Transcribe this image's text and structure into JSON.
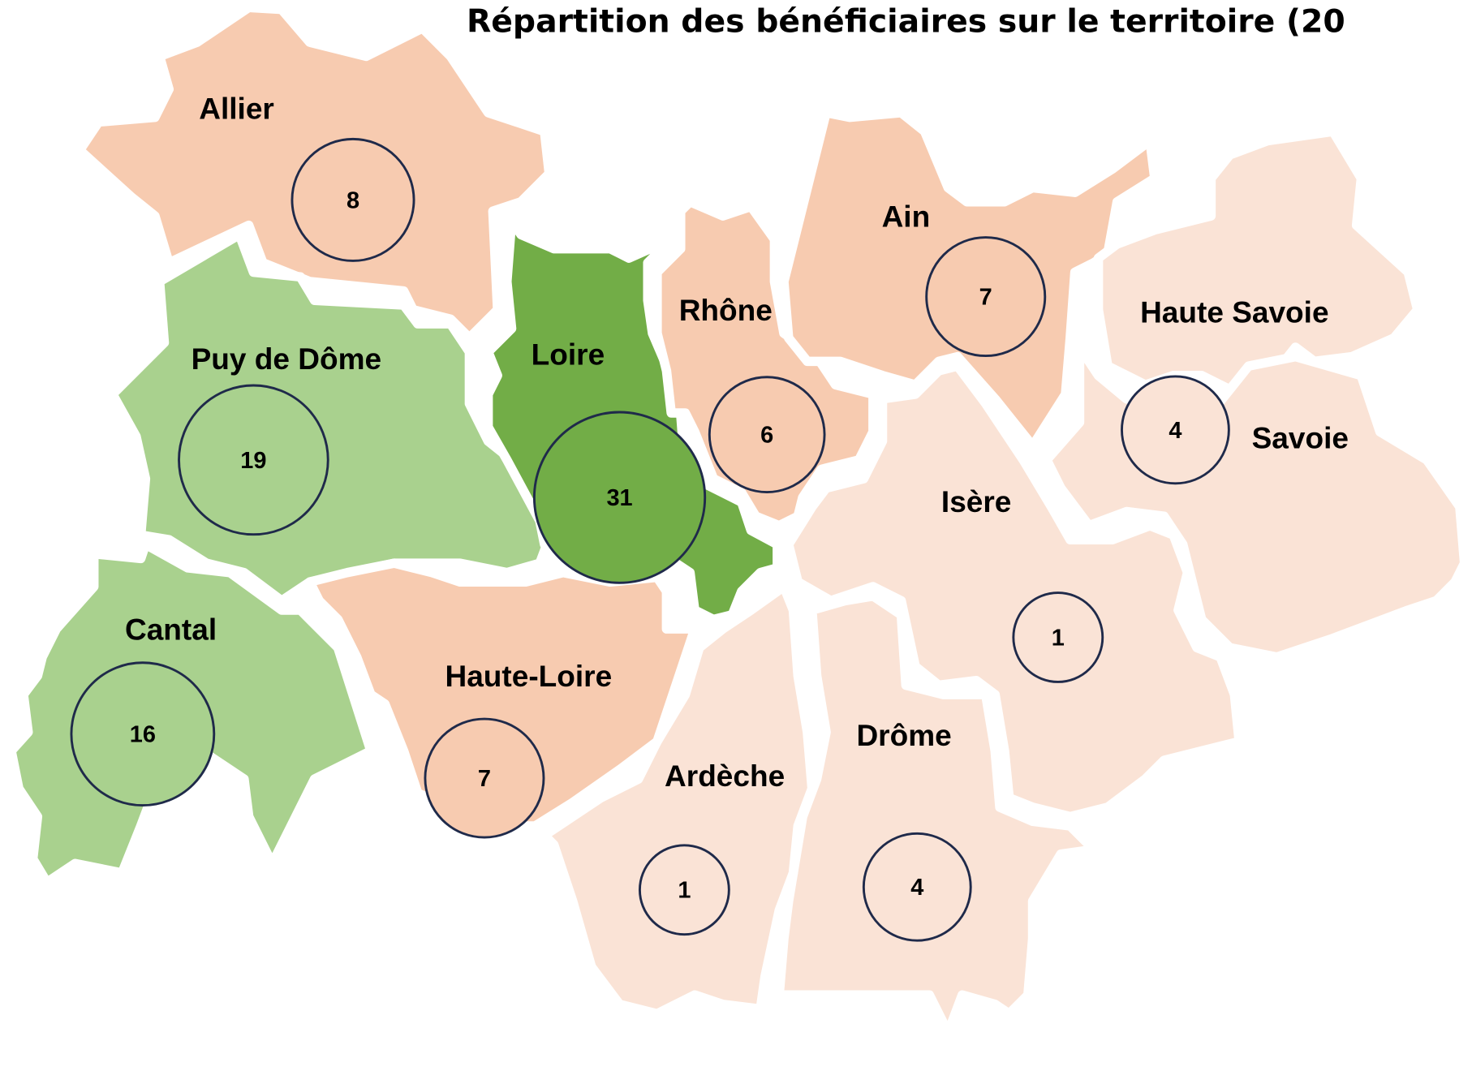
{
  "title": "Répartition des bénéficiaires sur le territoire (20",
  "regions": [
    {
      "name": "Allier",
      "value": 8,
      "color": "#f7cbb0"
    },
    {
      "name": "Puy de Dôme",
      "value": 19,
      "color": "#a9d18e"
    },
    {
      "name": "Loire",
      "value": 31,
      "color": "#72ad47"
    },
    {
      "name": "Rhône",
      "value": 6,
      "color": "#f7cbb0"
    },
    {
      "name": "Ain",
      "value": 7,
      "color": "#f7cbb0"
    },
    {
      "name": "Haute Savoie",
      "value": 4,
      "color": "#fae3d6"
    },
    {
      "name": "Savoie",
      "color": "#fae3d6"
    },
    {
      "name": "Isère",
      "value": 1,
      "color": "#fae3d6"
    },
    {
      "name": "Drôme",
      "value": 4,
      "color": "#fae3d6"
    },
    {
      "name": "Ardèche",
      "value": 1,
      "color": "#fae3d6"
    },
    {
      "name": "Haute-Loire",
      "value": 7,
      "color": "#f7cbb0"
    },
    {
      "name": "Cantal",
      "value": 16,
      "color": "#a9d18e"
    }
  ]
}
